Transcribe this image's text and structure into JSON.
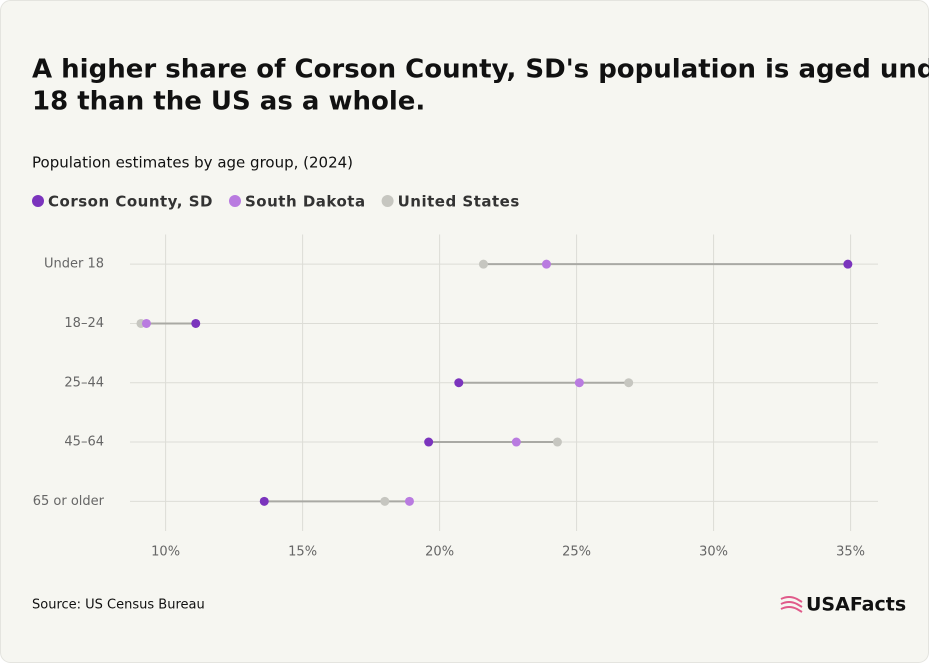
{
  "chart_data": {
    "type": "dot",
    "title": [
      "A higher share of Corson County, SD's population is aged under",
      "18 than the US as a whole."
    ],
    "subtitle": "Population estimates by age group, (2024)",
    "categories": [
      "Under 18",
      "18–24",
      "25–44",
      "45–64",
      "65 or older"
    ],
    "series": [
      {
        "name": "Corson County, SD",
        "color": "#7b34bd",
        "values": [
          34.9,
          11.1,
          20.7,
          19.6,
          13.6
        ]
      },
      {
        "name": "South Dakota",
        "color": "#b97be0",
        "values": [
          23.9,
          9.3,
          25.1,
          22.8,
          18.9
        ]
      },
      {
        "name": "United States",
        "color": "#c6c6c0",
        "values": [
          21.6,
          9.1,
          26.9,
          24.3,
          18.0
        ]
      }
    ],
    "xlim": [
      8.7,
      36
    ],
    "xticks": [
      {
        "value": 10,
        "label": "10%"
      },
      {
        "value": 15,
        "label": "15%"
      },
      {
        "value": 20,
        "label": "20%"
      },
      {
        "value": 25,
        "label": "25%"
      },
      {
        "value": 30,
        "label": "30%"
      },
      {
        "value": 35,
        "label": "35%"
      }
    ],
    "grid": true,
    "source": "Source: US Census Bureau",
    "brand": "USAFacts"
  }
}
